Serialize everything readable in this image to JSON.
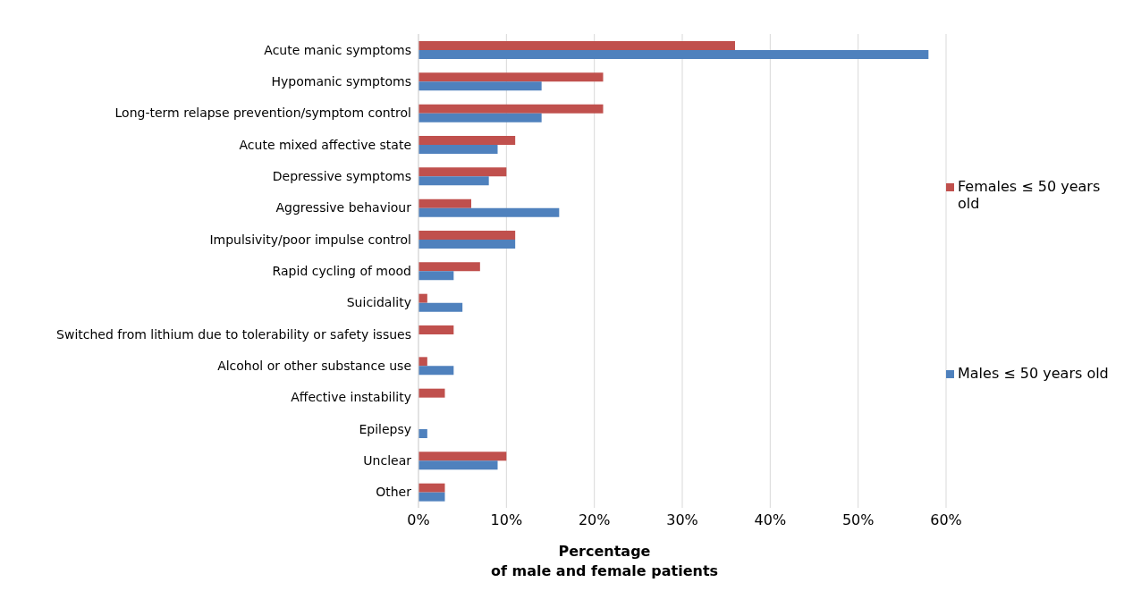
{
  "chart_data": {
    "type": "bar",
    "orientation": "horizontal",
    "xlabel": "Percentage\nof male and female patients",
    "categories": [
      "Acute manic symptoms",
      "Hypomanic symptoms",
      "Long-term relapse prevention/symptom control",
      "Acute mixed affective state",
      "Depressive symptoms",
      "Aggressive behaviour",
      "Impulsivity/poor impulse control",
      "Rapid cycling of mood",
      "Suicidality",
      "Switched from lithium due to tolerability or safety issues",
      "Alcohol or other substance use",
      "Affective instability",
      "Epilepsy",
      "Unclear",
      "Other"
    ],
    "series": [
      {
        "name": "Females ≤ 50 years old",
        "color": "#c0504d",
        "values": [
          36,
          21,
          21,
          11,
          10,
          6,
          11,
          7,
          1,
          4,
          1,
          3,
          0,
          10,
          3
        ]
      },
      {
        "name": "Males ≤ 50 years old",
        "color": "#4f81bd",
        "values": [
          58,
          14,
          14,
          9,
          8,
          16,
          11,
          4,
          5,
          0,
          4,
          0,
          1,
          9,
          3
        ]
      }
    ],
    "xlim": [
      0,
      60
    ],
    "xticks": [
      {
        "value": 0,
        "label": "0%"
      },
      {
        "value": 10,
        "label": "10%"
      },
      {
        "value": 20,
        "label": "20%"
      },
      {
        "value": 30,
        "label": "30%"
      },
      {
        "value": 40,
        "label": "40%"
      },
      {
        "value": 50,
        "label": "50%"
      },
      {
        "value": 60,
        "label": "60%"
      }
    ],
    "grid": "x",
    "legend": "right"
  }
}
